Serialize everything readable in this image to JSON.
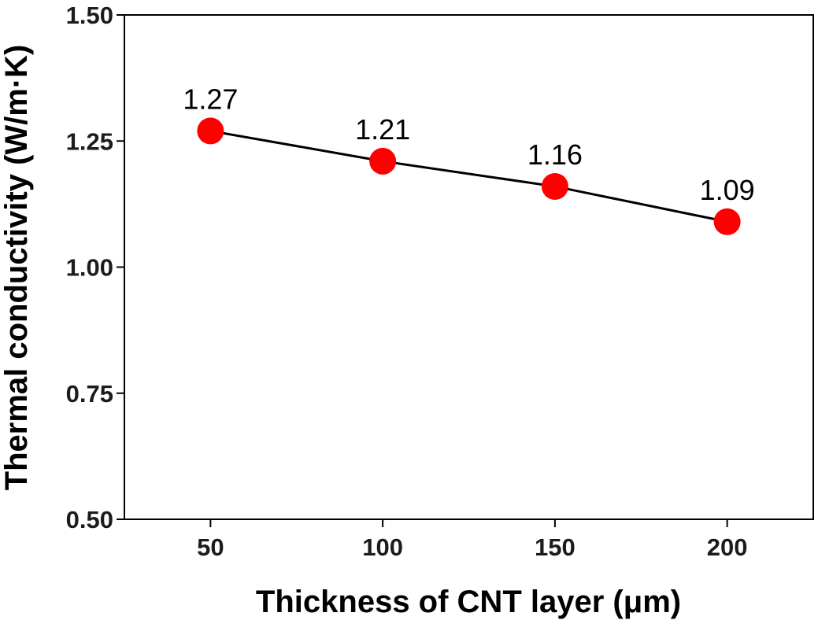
{
  "chart_data": {
    "type": "line",
    "title": "",
    "xlabel": "Thickness of CNT layer (μm)",
    "ylabel": "Thermal conductivity (W/m·K)",
    "x": [
      50,
      100,
      150,
      200
    ],
    "series": [
      {
        "values": [
          1.27,
          1.21,
          1.16,
          1.09
        ],
        "data_labels": [
          "1.27",
          "1.21",
          "1.16",
          "1.09"
        ],
        "marker_color": "#ff0000",
        "line_color": "#000000"
      }
    ],
    "xlim": [
      25,
      225
    ],
    "ylim": [
      0.5,
      1.5
    ],
    "xticks": [
      50,
      100,
      150,
      200
    ],
    "xtick_labels": [
      "50",
      "100",
      "150",
      "200"
    ],
    "yticks": [
      0.5,
      0.75,
      1.0,
      1.25,
      1.5
    ],
    "ytick_labels": [
      "0.50",
      "0.75",
      "1.00",
      "1.25",
      "1.50"
    ],
    "grid": false,
    "legend": "none"
  }
}
